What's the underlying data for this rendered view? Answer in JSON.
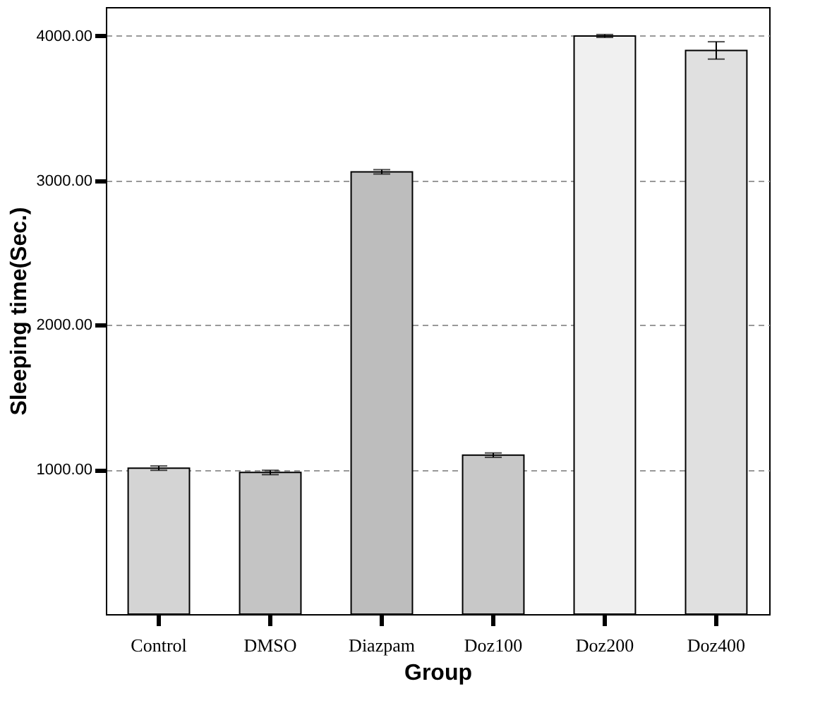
{
  "chart_data": {
    "type": "bar",
    "xlabel": "Group",
    "ylabel": "Sleeping time(Sec.)",
    "categories": [
      "Control",
      "DMSO",
      "Diazpam",
      "Doz100",
      "Doz200",
      "Doz400"
    ],
    "values": [
      1010,
      980,
      3060,
      1100,
      4000,
      3900
    ],
    "errors": [
      15,
      15,
      15,
      15,
      10,
      60
    ],
    "colors": [
      "#d4d4d4",
      "#c4c4c4",
      "#bdbdbd",
      "#c8c8c8",
      "#f0f0f0",
      "#e0e0e0"
    ],
    "ylim": [
      0,
      4200
    ],
    "yticks": [
      {
        "value": 1000,
        "label": "1000.00"
      },
      {
        "value": 2000,
        "label": "2000.00"
      },
      {
        "value": 3000,
        "label": "3000.00"
      },
      {
        "value": 4000,
        "label": "4000.00"
      }
    ],
    "grid": "y"
  }
}
